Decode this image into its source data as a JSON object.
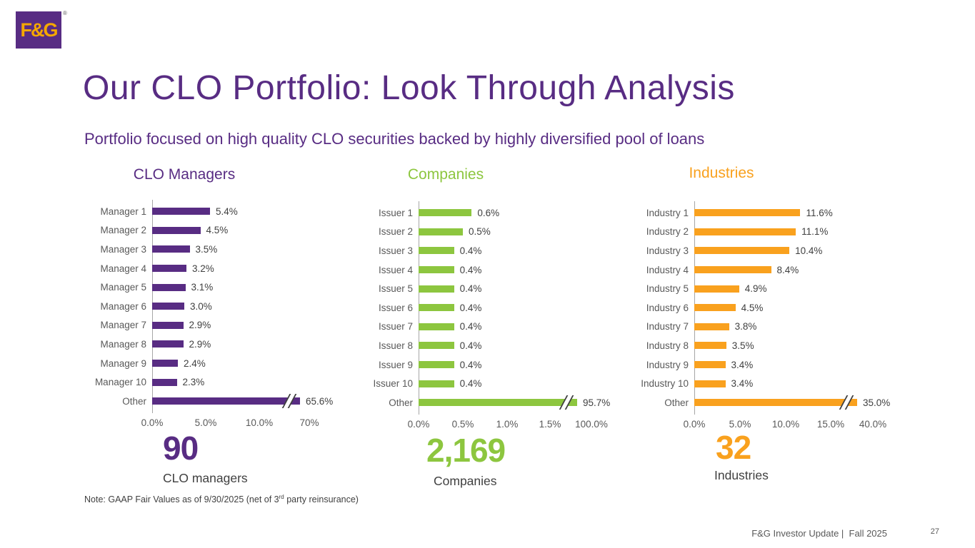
{
  "page": {
    "logo_text": "F&G",
    "logo_reg": "®",
    "title": "Our CLO Portfolio: Look Through Analysis",
    "subtitle": "Portfolio focused on high quality CLO securities backed by highly diversified pool of loans",
    "note_prefix": "Note: GAAP Fair Values as of 9/30/2025  (net of 3",
    "note_sup": "rd",
    "note_suffix": " party reinsurance)",
    "footer": "F&G Investor Update |  Fall 2025",
    "page_number": "27"
  },
  "colors": {
    "purple": "#582C83",
    "green": "#8DC63F",
    "orange": "#F9A11E",
    "label_gray": "#595959"
  },
  "chart_data": [
    {
      "type": "bar",
      "orientation": "horizontal",
      "title": "CLO Managers",
      "color": "#582C83",
      "categories": [
        "Manager 1",
        "Manager 2",
        "Manager 3",
        "Manager 4",
        "Manager 5",
        "Manager 6",
        "Manager 7",
        "Manager 8",
        "Manager 9",
        "Manager 10",
        "Other"
      ],
      "values": [
        5.4,
        4.5,
        3.5,
        3.2,
        3.1,
        3.0,
        2.9,
        2.9,
        2.4,
        2.3,
        65.6
      ],
      "value_labels": [
        "5.4%",
        "4.5%",
        "3.5%",
        "3.2%",
        "3.1%",
        "3.0%",
        "2.9%",
        "2.9%",
        "2.4%",
        "2.3%",
        "65.6%"
      ],
      "ticks": [
        "0.0%",
        "5.0%",
        "10.0%",
        "70%"
      ],
      "axis_break": true,
      "grid": false,
      "stat_value": "90",
      "stat_label": "CLO managers"
    },
    {
      "type": "bar",
      "orientation": "horizontal",
      "title": "Companies",
      "color": "#8DC63F",
      "categories": [
        "Issuer 1",
        "Issuer 2",
        "Issuer 3",
        "Issuer 4",
        "Issuer 5",
        "Issuer 6",
        "Issuer 7",
        "Issuer 8",
        "Issuer 9",
        "Issuer 10",
        "Other"
      ],
      "values": [
        0.6,
        0.5,
        0.4,
        0.4,
        0.4,
        0.4,
        0.4,
        0.4,
        0.4,
        0.4,
        95.7
      ],
      "value_labels": [
        "0.6%",
        "0.5%",
        "0.4%",
        "0.4%",
        "0.4%",
        "0.4%",
        "0.4%",
        "0.4%",
        "0.4%",
        "0.4%",
        "95.7%"
      ],
      "ticks": [
        "0.0%",
        "0.5%",
        "1.0%",
        "1.5%",
        "100.0%"
      ],
      "axis_break": true,
      "grid": false,
      "stat_value": "2,169",
      "stat_label": "Companies"
    },
    {
      "type": "bar",
      "orientation": "horizontal",
      "title": "Industries",
      "color": "#F9A11E",
      "categories": [
        "Industry 1",
        "Industry 2",
        "Industry 3",
        "Industry 4",
        "Industry 5",
        "Industry 6",
        "Industry 7",
        "Industry 8",
        "Industry 9",
        "Industry 10",
        "Other"
      ],
      "values": [
        11.6,
        11.1,
        10.4,
        8.4,
        4.9,
        4.5,
        3.8,
        3.5,
        3.4,
        3.4,
        35.0
      ],
      "value_labels": [
        "11.6%",
        "11.1%",
        "10.4%",
        "8.4%",
        "4.9%",
        "4.5%",
        "3.8%",
        "3.5%",
        "3.4%",
        "3.4%",
        "35.0%"
      ],
      "ticks": [
        "0.0%",
        "5.0%",
        "10.0%",
        "15.0%",
        "40.0%"
      ],
      "axis_break": true,
      "grid": false,
      "stat_value": "32",
      "stat_label": "Industries"
    }
  ]
}
